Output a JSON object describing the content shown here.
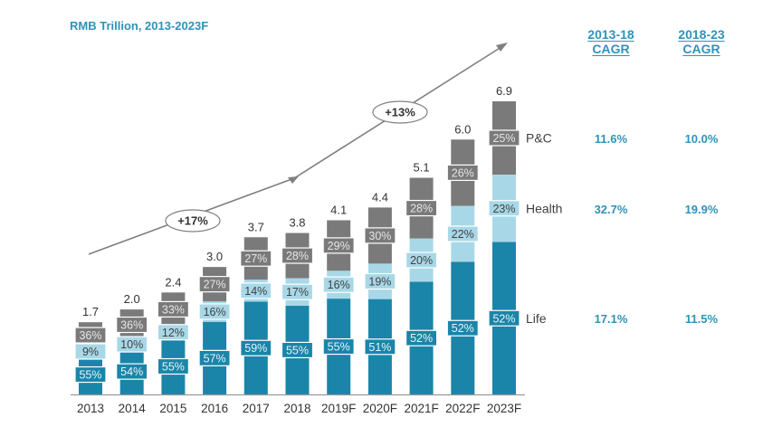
{
  "chart_data": {
    "type": "bar",
    "stacked": true,
    "title": "RMB Trillion, 2013-2023F",
    "xlabel": "",
    "ylabel": "",
    "ylim": [
      0,
      7.2
    ],
    "grid": false,
    "categories": [
      "2013",
      "2014",
      "2015",
      "2016",
      "2017",
      "2018",
      "2019F",
      "2020F",
      "2021F",
      "2022F",
      "2023F"
    ],
    "totals": [
      1.7,
      2.0,
      2.4,
      3.0,
      3.7,
      3.8,
      4.1,
      4.4,
      5.1,
      6.0,
      6.9
    ],
    "total_labels": [
      "1.7",
      "2.0",
      "2.4",
      "3.0",
      "3.7",
      "3.8",
      "4.1",
      "4.4",
      "5.1",
      "6.0",
      "6.9"
    ],
    "series": [
      {
        "name": "Life",
        "color": "#1a85a8",
        "label_color": "#e8f4f8",
        "share_pct": [
          55,
          54,
          55,
          57,
          59,
          55,
          55,
          51,
          52,
          52,
          52
        ],
        "labels": [
          "55%",
          "54%",
          "55%",
          "57%",
          "59%",
          "55%",
          "55%",
          "51%",
          "52%",
          "52%",
          "52%"
        ]
      },
      {
        "name": "Health",
        "color": "#a8d8e8",
        "label_color": "#404040",
        "share_pct": [
          9,
          10,
          12,
          16,
          14,
          17,
          16,
          19,
          20,
          22,
          23
        ],
        "labels": [
          "9%",
          "10%",
          "12%",
          "16%",
          "14%",
          "17%",
          "16%",
          "19%",
          "20%",
          "22%",
          "23%"
        ]
      },
      {
        "name": "P&C",
        "color": "#7a7a7a",
        "label_color": "#e6e6e6",
        "share_pct": [
          36,
          36,
          33,
          27,
          27,
          28,
          29,
          30,
          28,
          26,
          25
        ],
        "labels": [
          "36%",
          "36%",
          "33%",
          "27%",
          "27%",
          "28%",
          "29%",
          "30%",
          "28%",
          "26%",
          "25%"
        ]
      }
    ],
    "legend": {
      "placement": "right",
      "entries": [
        "P&C",
        "Health",
        "Life"
      ]
    },
    "annotations": [
      {
        "text": "+17%",
        "period": "2013-2018",
        "type": "growth-arrow"
      },
      {
        "text": "+13%",
        "period": "2018-2023F",
        "type": "growth-arrow"
      }
    ],
    "cagr_table": {
      "headers": [
        [
          "2013-18",
          "CAGR"
        ],
        [
          "2018-23",
          "CAGR"
        ]
      ],
      "rows": [
        {
          "segment": "P&C",
          "values": [
            "11.6%",
            "10.0%"
          ]
        },
        {
          "segment": "Health",
          "values": [
            "32.7%",
            "19.9%"
          ]
        },
        {
          "segment": "Life",
          "values": [
            "17.1%",
            "11.5%"
          ]
        }
      ]
    }
  }
}
